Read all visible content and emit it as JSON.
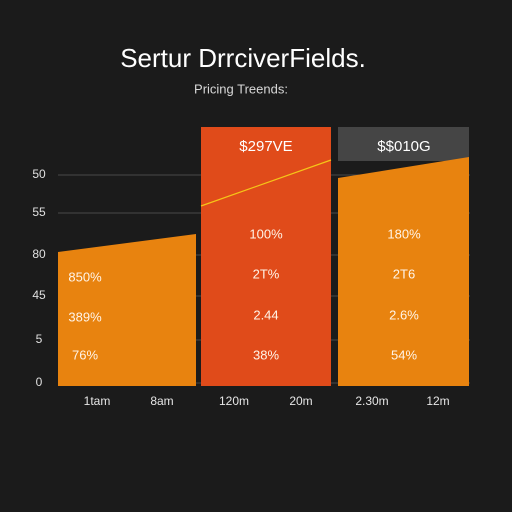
{
  "header": {
    "title": "Sertur DrrciverFields.",
    "subtitle": "Pricing Treends:"
  },
  "y_labels": [
    "50",
    "55",
    "80",
    "45",
    "5",
    "0"
  ],
  "panels": [
    {
      "values": [
        "850%",
        "389%",
        "76%"
      ]
    },
    {
      "label": "$297VE",
      "values": [
        "100%",
        "2T%",
        "2.44",
        "38%"
      ]
    },
    {
      "label": "$$010G",
      "values": [
        "180%",
        "2T6",
        "2.6%",
        "54%"
      ]
    }
  ],
  "x_labels": [
    "1tam",
    "8am",
    "120m",
    "20m",
    "2.30m",
    "12m"
  ]
}
